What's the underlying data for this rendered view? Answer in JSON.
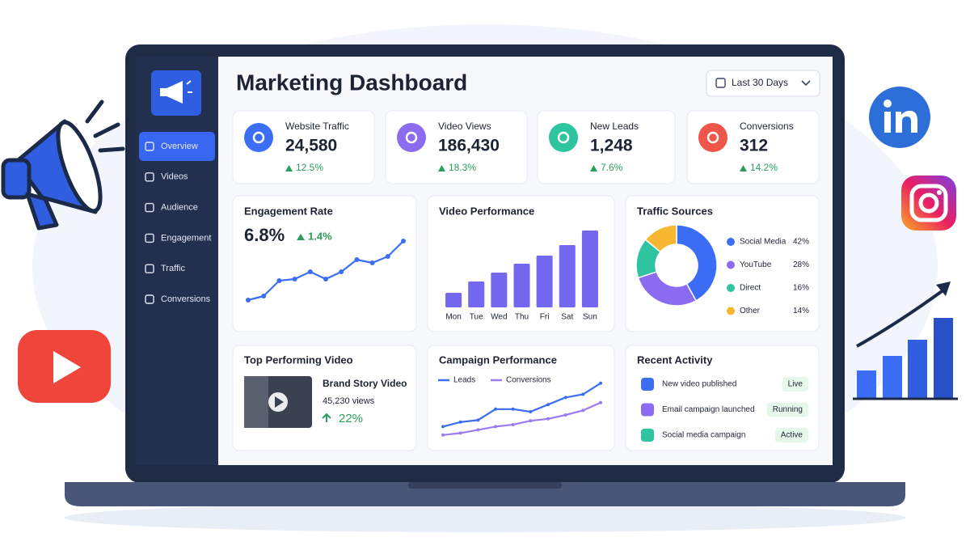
{
  "header": {
    "title": "Marketing Dashboard",
    "date_range": "Last 30 Days"
  },
  "sidebar": {
    "items": [
      "Overview",
      "Videos",
      "Audience",
      "Engagement",
      "Traffic",
      "Conversions"
    ]
  },
  "kpis": [
    {
      "label": "Website Traffic",
      "value": "24,580",
      "change": "12.5%",
      "color": "#3b6ef5"
    },
    {
      "label": "Video Views",
      "value": "186,430",
      "change": "18.3%",
      "color": "#8b6cf0"
    },
    {
      "label": "New Leads",
      "value": "1,248",
      "change": "7.6%",
      "color": "#2ec4a0"
    },
    {
      "label": "Conversions",
      "value": "312",
      "change": "14.2%",
      "color": "#f0554a"
    }
  ],
  "chart_data": [
    {
      "type": "line",
      "title": "Engagement Rate",
      "value": "6.8%",
      "change": "1.4%",
      "color": "#3b6ef5",
      "values": [
        19,
        24,
        43,
        45,
        54,
        45,
        54,
        69,
        65,
        73,
        92
      ],
      "ylim": [
        0,
        100
      ],
      "grid": false
    },
    {
      "type": "bar",
      "title": "Video Performance",
      "color": "#7467f0",
      "categories": [
        "Mon",
        "Tue",
        "Wed",
        "Thu",
        "Fri",
        "Sat",
        "Sun"
      ],
      "values": [
        18,
        32,
        43,
        54,
        64,
        77,
        95
      ],
      "ylim": [
        0,
        100
      ],
      "grid": false
    },
    {
      "type": "pie",
      "title": "Traffic Sources",
      "donut": true,
      "categories": [
        "Social Media",
        "YouTube",
        "Direct",
        "Other"
      ],
      "values": [
        42,
        28,
        16,
        14
      ],
      "value_labels": [
        "42%",
        "28%",
        "16%",
        "14%"
      ],
      "colors": [
        "#3b6ef5",
        "#8b6cf0",
        "#2ec4a0",
        "#f7b731"
      ]
    },
    {
      "type": "line",
      "title": "Campaign Performance",
      "ylim": [
        0,
        100
      ],
      "grid": false,
      "series": [
        {
          "name": "Leads",
          "color": "#3b6ef5",
          "values": [
            22,
            29,
            32,
            49,
            49,
            45,
            56,
            67,
            72,
            89
          ]
        },
        {
          "name": "Conversions",
          "color": "#9b7cf0",
          "values": [
            9,
            12,
            17,
            22,
            25,
            31,
            34,
            40,
            47,
            59
          ]
        }
      ]
    }
  ],
  "top_video": {
    "title": "Top Performing Video",
    "name": "Brand Story Video",
    "views": "45,230 views",
    "change": "22%"
  },
  "recent_activity": {
    "title": "Recent Activity",
    "items": [
      {
        "text": "New video published",
        "status": "Live",
        "color": "#3b6ef5"
      },
      {
        "text": "Email campaign launched",
        "status": "Running",
        "color": "#8b6cf0"
      },
      {
        "text": "Social media campaign",
        "status": "Active",
        "color": "#2ec4a0"
      }
    ]
  }
}
